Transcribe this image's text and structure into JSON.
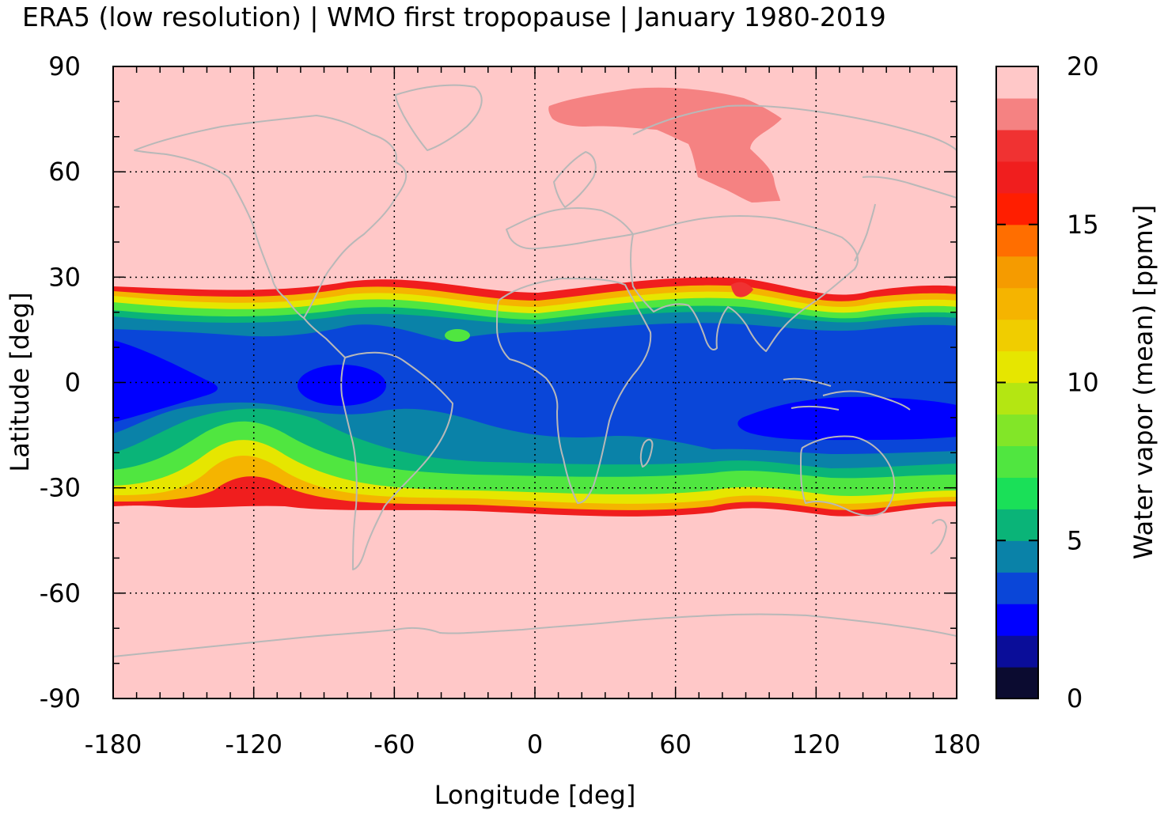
{
  "title": "ERA5 (low resolution) | WMO first tropopause | January 1980-2019",
  "map": {
    "xlabel": "Longitude [deg]",
    "ylabel": "Latitude [deg]",
    "xlim": [
      -180,
      180
    ],
    "ylim": [
      -90,
      90
    ],
    "xticks": [
      "-180",
      "-120",
      "-60",
      "0",
      "60",
      "120",
      "180"
    ],
    "yticks": [
      "90",
      "60",
      "30",
      "0",
      "-30",
      "-60",
      "-90"
    ],
    "grid": true,
    "background_color": "#ffc8c8",
    "coastline_color": "#b8b8b8"
  },
  "colorbar": {
    "label": "Water vapor (mean) [ppmv]",
    "ticks": [
      "20",
      "15",
      "10",
      "5",
      "0"
    ],
    "range": [
      0,
      20
    ],
    "colors_bottom_to_top": [
      "#0b0b30",
      "#0a0d99",
      "#0000ff",
      "#0a46d8",
      "#0a82a8",
      "#0ab478",
      "#1ae058",
      "#50e640",
      "#82e628",
      "#b4e612",
      "#e6e600",
      "#f0cd00",
      "#f5b400",
      "#f59b00",
      "#ff6e00",
      "#ff1e00",
      "#f01e1e",
      "#f03232",
      "#f58282",
      "#ffc8c8"
    ]
  }
}
